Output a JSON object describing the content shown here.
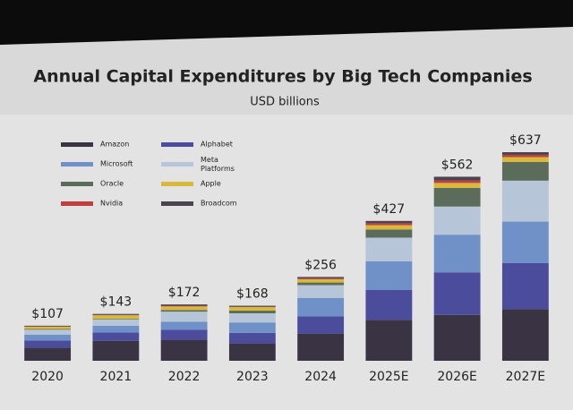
{
  "chart_data": {
    "type": "stacked_bar",
    "title": "Annual Capital Expenditures by Big Tech Companies",
    "subtitle": "USD billions",
    "categories": [
      "2020",
      "2021",
      "2022",
      "2023",
      "2024",
      "2025E",
      "2026E",
      "2027E"
    ],
    "series": [
      {
        "name": "Amazon",
        "color": "#3a3344",
        "values": [
          40,
          61,
          64,
          53,
          83,
          125,
          140,
          158
        ]
      },
      {
        "name": "Alphabet",
        "color": "#4b4c9c",
        "values": [
          22,
          25,
          31,
          32,
          53,
          91,
          130,
          140
        ]
      },
      {
        "name": "Microsoft",
        "color": "#7090c8",
        "values": [
          18,
          21,
          24,
          32,
          56,
          88,
          115,
          127
        ]
      },
      {
        "name": "Meta\nPlatforms",
        "color": "#b6c5d8",
        "values": [
          15,
          19,
          31,
          28,
          39,
          72,
          86,
          125
        ]
      },
      {
        "name": "Oracle",
        "color": "#5b6c5a",
        "values": [
          2,
          2,
          5,
          8,
          8,
          25,
          57,
          57
        ]
      },
      {
        "name": "Apple",
        "color": "#d9b93c",
        "values": [
          7,
          11,
          11,
          11,
          10,
          13,
          15,
          15
        ]
      },
      {
        "name": "Nvidia",
        "color": "#c0403f",
        "values": [
          1,
          1,
          2,
          1,
          3,
          6,
          8,
          7
        ]
      },
      {
        "name": "Broadcom",
        "color": "#4a4450",
        "values": [
          2,
          3,
          4,
          3,
          4,
          7,
          11,
          8
        ]
      }
    ],
    "totals": [
      107,
      143,
      172,
      168,
      256,
      427,
      562,
      637
    ],
    "total_labels": [
      "$107",
      "$143",
      "$172",
      "$168",
      "$256",
      "$427",
      "$562",
      "$637"
    ]
  }
}
